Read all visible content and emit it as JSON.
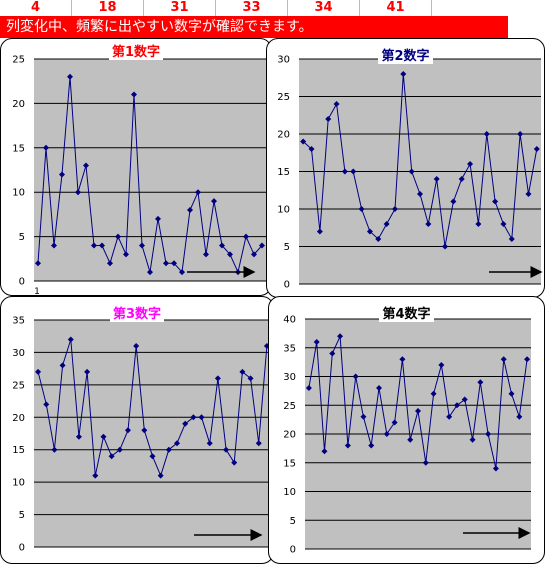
{
  "header": {
    "numbers": [
      "4",
      "18",
      "31",
      "33",
      "34",
      "41"
    ]
  },
  "banner": {
    "text": "列変化中、頻繁に出やすい数字が確認できます。"
  },
  "chart_data": [
    {
      "type": "line",
      "title": "第1数字",
      "title_color": "#ff0000",
      "ylim": [
        0,
        25
      ],
      "yticks": [
        "0",
        "5",
        "10",
        "15",
        "20",
        "25"
      ],
      "x_first_label": "1",
      "grid": true,
      "series": [
        {
          "color": "#000080",
          "values": [
            2,
            15,
            4,
            12,
            23,
            10,
            13,
            4,
            4,
            2,
            5,
            3,
            21,
            4,
            1,
            7,
            2,
            2,
            1,
            8,
            10,
            3,
            9,
            4,
            3,
            1,
            5,
            3,
            4
          ]
        }
      ]
    },
    {
      "type": "line",
      "title": "第2数字",
      "title_color": "#000080",
      "ylim": [
        0,
        30
      ],
      "yticks": [
        "0",
        "5",
        "10",
        "15",
        "20",
        "25",
        "30"
      ],
      "grid": true,
      "series": [
        {
          "color": "#000080",
          "values": [
            19,
            18,
            7,
            22,
            24,
            15,
            15,
            10,
            7,
            6,
            8,
            10,
            28,
            15,
            12,
            8,
            14,
            5,
            11,
            14,
            16,
            8,
            20,
            11,
            8,
            6,
            20,
            12,
            18
          ]
        }
      ]
    },
    {
      "type": "line",
      "title": "第3数字",
      "title_color": "#ff00ff",
      "ylim": [
        0,
        35
      ],
      "yticks": [
        "0",
        "5",
        "10",
        "15",
        "20",
        "25",
        "30",
        "35"
      ],
      "grid": true,
      "series": [
        {
          "color": "#000080",
          "values": [
            27,
            22,
            15,
            28,
            32,
            17,
            27,
            11,
            17,
            14,
            15,
            18,
            31,
            18,
            14,
            11,
            15,
            16,
            19,
            20,
            20,
            16,
            26,
            15,
            13,
            27,
            26,
            16,
            31
          ]
        }
      ]
    },
    {
      "type": "line",
      "title": "第4数字",
      "title_color": "#000000",
      "ylim": [
        0,
        40
      ],
      "yticks": [
        "0",
        "5",
        "10",
        "15",
        "20",
        "25",
        "30",
        "35",
        "40"
      ],
      "grid": true,
      "series": [
        {
          "color": "#000080",
          "values": [
            28,
            36,
            17,
            34,
            37,
            18,
            30,
            23,
            18,
            28,
            20,
            22,
            33,
            19,
            24,
            15,
            27,
            32,
            23,
            25,
            26,
            19,
            29,
            20,
            14,
            33,
            27,
            23,
            33
          ]
        }
      ]
    }
  ]
}
